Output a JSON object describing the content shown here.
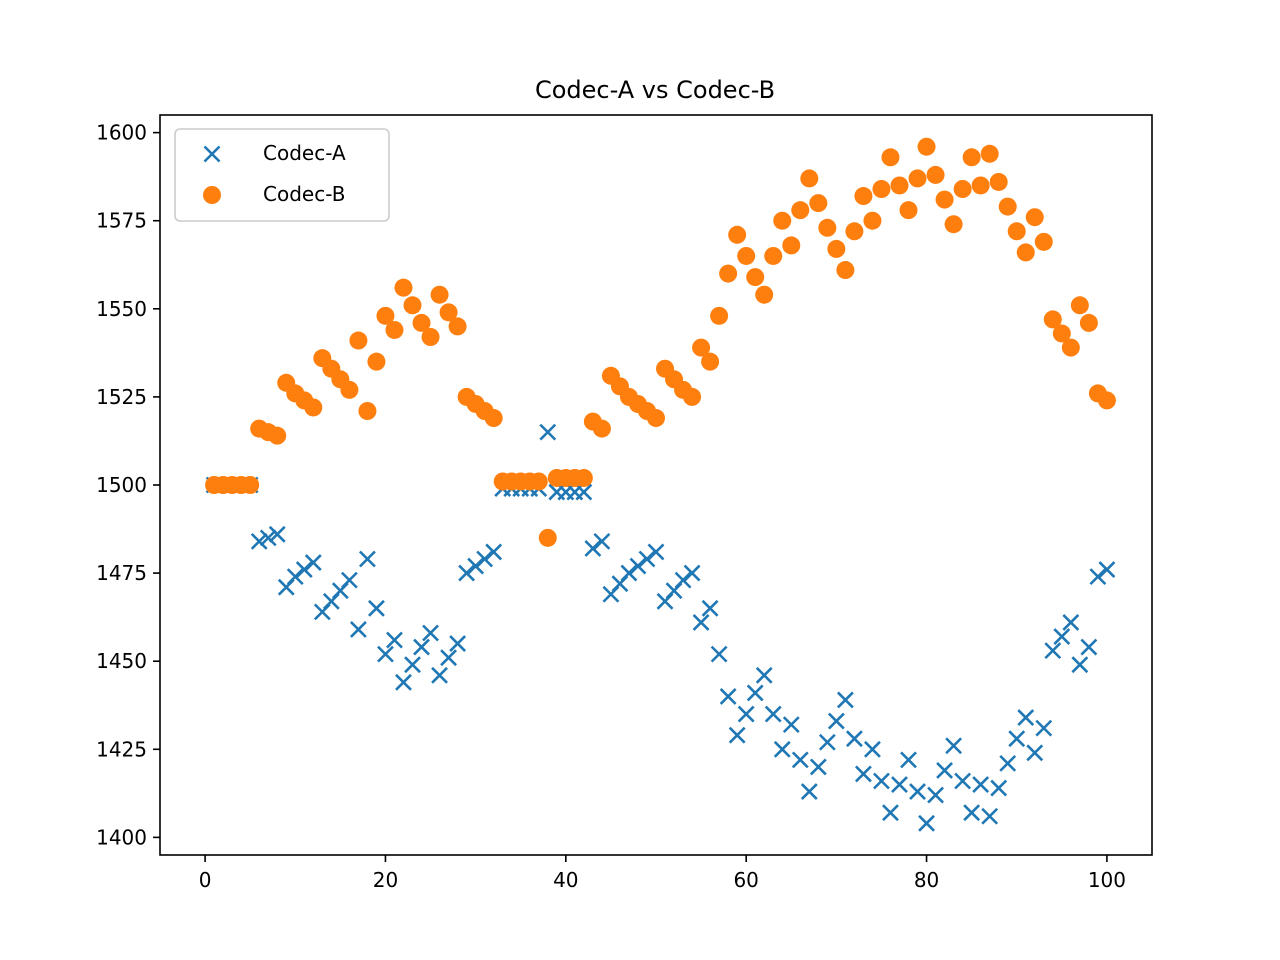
{
  "chart_data": {
    "type": "scatter",
    "title": "Codec-A vs Codec-B",
    "xlabel": "",
    "ylabel": "",
    "xlim": [
      -5,
      105
    ],
    "ylim": [
      1395,
      1605
    ],
    "x_ticks": [
      0,
      20,
      40,
      60,
      80,
      100
    ],
    "y_ticks": [
      1400,
      1425,
      1450,
      1475,
      1500,
      1525,
      1550,
      1575,
      1600
    ],
    "grid": false,
    "legend_position": "top-left",
    "x": [
      1,
      2,
      3,
      4,
      5,
      6,
      7,
      8,
      9,
      10,
      11,
      12,
      13,
      14,
      15,
      16,
      17,
      18,
      19,
      20,
      21,
      22,
      23,
      24,
      25,
      26,
      27,
      28,
      29,
      30,
      31,
      32,
      33,
      34,
      35,
      36,
      37,
      38,
      39,
      40,
      41,
      42,
      43,
      44,
      45,
      46,
      47,
      48,
      49,
      50,
      51,
      52,
      53,
      54,
      55,
      56,
      57,
      58,
      59,
      60,
      61,
      62,
      63,
      64,
      65,
      66,
      67,
      68,
      69,
      70,
      71,
      72,
      73,
      74,
      75,
      76,
      77,
      78,
      79,
      80,
      81,
      82,
      83,
      84,
      85,
      86,
      87,
      88,
      89,
      90,
      91,
      92,
      93,
      94,
      95,
      96,
      97,
      98,
      99,
      100
    ],
    "series": [
      {
        "name": "Codec-A",
        "marker": "x",
        "color": "#1f77b4",
        "values": [
          1500,
          1500,
          1500,
          1500,
          1500,
          1484,
          1485,
          1486,
          1471,
          1474,
          1476,
          1478,
          1464,
          1467,
          1470,
          1473,
          1459,
          1479,
          1465,
          1452,
          1456,
          1444,
          1449,
          1454,
          1458,
          1446,
          1451,
          1455,
          1475,
          1477,
          1479,
          1481,
          1499,
          1499,
          1499,
          1499,
          1499,
          1515,
          1498,
          1498,
          1498,
          1498,
          1482,
          1484,
          1469,
          1472,
          1475,
          1477,
          1479,
          1481,
          1467,
          1470,
          1473,
          1475,
          1461,
          1465,
          1452,
          1440,
          1429,
          1435,
          1441,
          1446,
          1435,
          1425,
          1432,
          1422,
          1413,
          1420,
          1427,
          1433,
          1439,
          1428,
          1418,
          1425,
          1416,
          1407,
          1415,
          1422,
          1413,
          1404,
          1412,
          1419,
          1426,
          1416,
          1407,
          1415,
          1406,
          1414,
          1421,
          1428,
          1434,
          1424,
          1431,
          1453,
          1457,
          1461,
          1449,
          1454,
          1474,
          1476
        ]
      },
      {
        "name": "Codec-B",
        "marker": "o",
        "color": "#ff7f0e",
        "values": [
          1500,
          1500,
          1500,
          1500,
          1500,
          1516,
          1515,
          1514,
          1529,
          1526,
          1524,
          1522,
          1536,
          1533,
          1530,
          1527,
          1541,
          1521,
          1535,
          1548,
          1544,
          1556,
          1551,
          1546,
          1542,
          1554,
          1549,
          1545,
          1525,
          1523,
          1521,
          1519,
          1501,
          1501,
          1501,
          1501,
          1501,
          1485,
          1502,
          1502,
          1502,
          1502,
          1518,
          1516,
          1531,
          1528,
          1525,
          1523,
          1521,
          1519,
          1533,
          1530,
          1527,
          1525,
          1539,
          1535,
          1548,
          1560,
          1571,
          1565,
          1559,
          1554,
          1565,
          1575,
          1568,
          1578,
          1587,
          1580,
          1573,
          1567,
          1561,
          1572,
          1582,
          1575,
          1584,
          1593,
          1585,
          1578,
          1587,
          1596,
          1588,
          1581,
          1574,
          1584,
          1593,
          1585,
          1594,
          1586,
          1579,
          1572,
          1566,
          1576,
          1569,
          1547,
          1543,
          1539,
          1551,
          1546,
          1526,
          1524
        ]
      }
    ]
  }
}
